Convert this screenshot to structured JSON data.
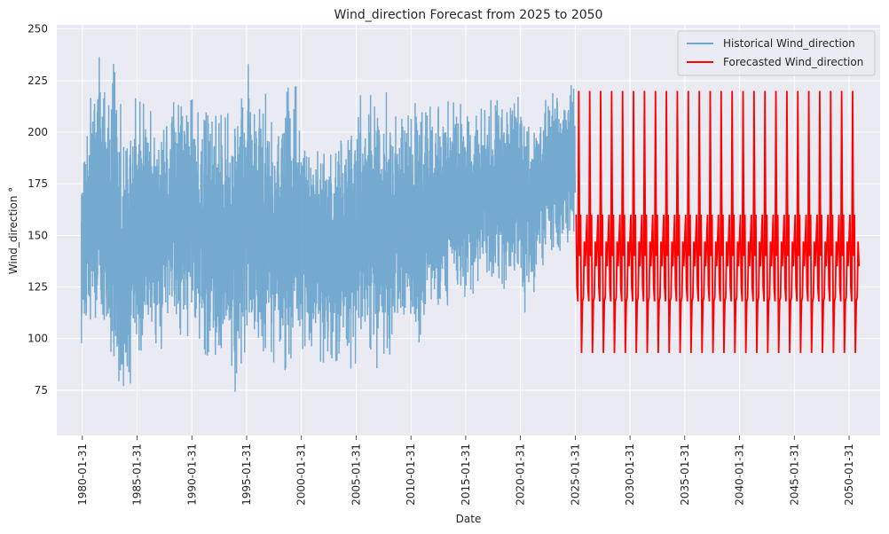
{
  "chart_data": {
    "type": "line",
    "title": "Wind_direction Forecast from 2025 to 2050",
    "xlabel": "Date",
    "ylabel": "Wind_direction °",
    "x_range": [
      "1977-10-01",
      "2052-12-01"
    ],
    "ylim": [
      53,
      252
    ],
    "y_ticks": [
      75,
      100,
      125,
      150,
      175,
      200,
      225,
      250
    ],
    "x_ticks": [
      "1980-01-31",
      "1985-01-31",
      "1990-01-31",
      "1995-01-31",
      "2000-01-31",
      "2005-01-31",
      "2010-01-31",
      "2015-01-31",
      "2020-01-31",
      "2025-01-31",
      "2030-01-31",
      "2035-01-31",
      "2040-01-31",
      "2045-01-31",
      "2050-01-31"
    ],
    "grid": true,
    "legend_position": "top-right",
    "colors": {
      "background": "#eaeaf2",
      "grid": "#ffffff",
      "historical": "#6fa6cd",
      "forecast": "#ff0000"
    },
    "series": [
      {
        "name": "Historical Wind_direction",
        "kind": "historical-daily",
        "date_range": [
          "1980-01-01",
          "2025-01-31"
        ],
        "envelope": [
          {
            "date": "1980-01-01",
            "low": 100,
            "high": 188
          },
          {
            "date": "1981-01-01",
            "low": 98,
            "high": 230
          },
          {
            "date": "1982-01-01",
            "low": 90,
            "high": 243
          },
          {
            "date": "1983-01-01",
            "low": 66,
            "high": 236
          },
          {
            "date": "1984-01-01",
            "low": 62,
            "high": 205
          },
          {
            "date": "1985-01-01",
            "low": 85,
            "high": 223
          },
          {
            "date": "1986-01-01",
            "low": 92,
            "high": 222
          },
          {
            "date": "1987-01-01",
            "low": 82,
            "high": 215
          },
          {
            "date": "1988-01-01",
            "low": 100,
            "high": 221
          },
          {
            "date": "1989-01-01",
            "low": 92,
            "high": 222
          },
          {
            "date": "1990-01-01",
            "low": 103,
            "high": 223
          },
          {
            "date": "1991-01-01",
            "low": 85,
            "high": 218
          },
          {
            "date": "1992-01-01",
            "low": 80,
            "high": 221
          },
          {
            "date": "1993-01-01",
            "low": 83,
            "high": 208
          },
          {
            "date": "1994-01-01",
            "low": 78,
            "high": 215
          },
          {
            "date": "1995-01-01",
            "low": 90,
            "high": 234
          },
          {
            "date": "1996-01-01",
            "low": 83,
            "high": 225
          },
          {
            "date": "1997-01-01",
            "low": 88,
            "high": 222
          },
          {
            "date": "1998-01-01",
            "low": 77,
            "high": 210
          },
          {
            "date": "1999-01-01",
            "low": 85,
            "high": 237
          },
          {
            "date": "2000-01-01",
            "low": 87,
            "high": 210
          },
          {
            "date": "2001-01-01",
            "low": 90,
            "high": 195
          },
          {
            "date": "2002-01-01",
            "low": 90,
            "high": 200
          },
          {
            "date": "2003-01-01",
            "low": 82,
            "high": 198
          },
          {
            "date": "2004-01-01",
            "low": 80,
            "high": 205
          },
          {
            "date": "2005-01-01",
            "low": 78,
            "high": 218
          },
          {
            "date": "2006-01-01",
            "low": 95,
            "high": 220
          },
          {
            "date": "2007-01-01",
            "low": 88,
            "high": 222
          },
          {
            "date": "2008-01-01",
            "low": 85,
            "high": 215
          },
          {
            "date": "2009-01-01",
            "low": 100,
            "high": 218
          },
          {
            "date": "2010-01-01",
            "low": 100,
            "high": 216
          },
          {
            "date": "2011-01-01",
            "low": 86,
            "high": 222
          },
          {
            "date": "2012-01-01",
            "low": 110,
            "high": 215
          },
          {
            "date": "2013-01-01",
            "low": 110,
            "high": 218
          },
          {
            "date": "2014-01-01",
            "low": 115,
            "high": 220
          },
          {
            "date": "2015-01-01",
            "low": 115,
            "high": 220
          },
          {
            "date": "2016-01-01",
            "low": 118,
            "high": 223
          },
          {
            "date": "2017-01-01",
            "low": 118,
            "high": 222
          },
          {
            "date": "2018-01-01",
            "low": 120,
            "high": 218
          },
          {
            "date": "2019-01-01",
            "low": 120,
            "high": 220
          },
          {
            "date": "2020-01-01",
            "low": 120,
            "high": 225
          },
          {
            "date": "2021-01-01",
            "low": 110,
            "high": 215
          },
          {
            "date": "2022-01-01",
            "low": 130,
            "high": 220
          },
          {
            "date": "2023-01-01",
            "low": 140,
            "high": 222
          },
          {
            "date": "2024-01-01",
            "low": 142,
            "high": 225
          },
          {
            "date": "2025-01-31",
            "low": 145,
            "high": 228
          }
        ]
      },
      {
        "name": "Forecasted Wind_direction",
        "kind": "forecast-yearly-cycle",
        "date_range": [
          "2025-02-28",
          "2050-12-31"
        ],
        "monthly_cycle": [
          160,
          125,
          118,
          220,
          140,
          160,
          93,
          118,
          120,
          147,
          135,
          147
        ]
      }
    ]
  }
}
